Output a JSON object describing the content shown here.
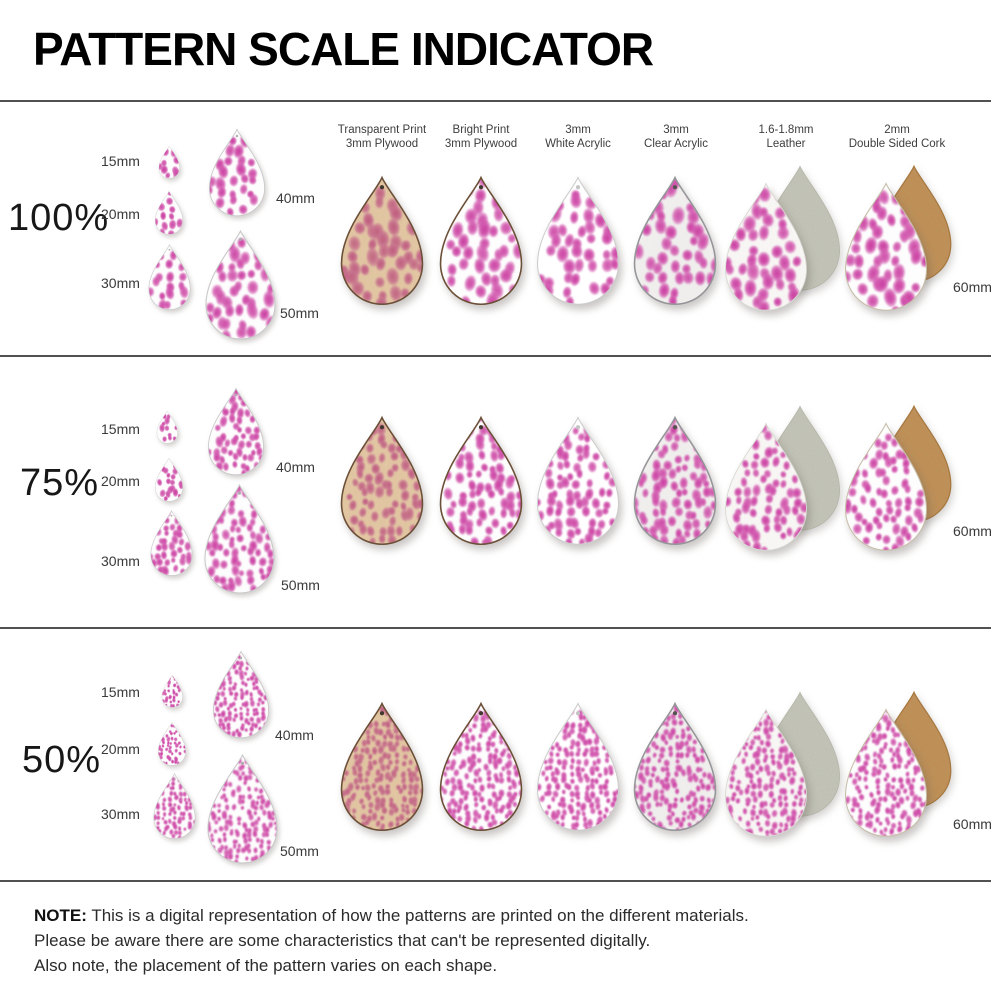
{
  "title": "PATTERN SCALE INDICATOR",
  "columns": [
    {
      "line1": "Transparent Print",
      "line2": "3mm Plywood",
      "slug": "plywood-transparent"
    },
    {
      "line1": "Bright Print",
      "line2": "3mm Plywood",
      "slug": "plywood-bright"
    },
    {
      "line1": "3mm",
      "line2": "White Acrylic",
      "slug": "white-acrylic"
    },
    {
      "line1": "3mm",
      "line2": "Clear Acrylic",
      "slug": "clear-acrylic"
    },
    {
      "line1": "1.6-1.8mm",
      "line2": "Leather",
      "slug": "leather"
    },
    {
      "line1": "2mm",
      "line2": "Double Sided Cork",
      "slug": "cork"
    }
  ],
  "rows": [
    {
      "percent": "100%",
      "sizes": [
        "15mm",
        "20mm",
        "30mm",
        "40mm",
        "50mm"
      ],
      "right_size_label": "60mm"
    },
    {
      "percent": "75%",
      "sizes": [
        "15mm",
        "20mm",
        "30mm",
        "40mm",
        "50mm"
      ],
      "right_size_label": "60mm"
    },
    {
      "percent": "50%",
      "sizes": [
        "15mm",
        "20mm",
        "30mm",
        "40mm",
        "50mm"
      ],
      "right_size_label": "60mm"
    }
  ],
  "note": {
    "prefix": "NOTE:",
    "lines": [
      "This is a digital representation of how the patterns are printed on the different materials.",
      "Please be aware there are some characteristics that can't be represented digitally.",
      "Also note, the placement of the pattern varies on each shape."
    ]
  },
  "colors": {
    "pink_core": "#c93d9f",
    "pink_mid": "#d257ae",
    "pink_halo": "#eec0e0",
    "rose_core": "#bd5a7b",
    "rose_mid": "#c7708c",
    "rose_halo": "#ddabb8",
    "plywood_base": "#e4c8a4",
    "plywood_edge": "#6b4f37",
    "acrylic_white": "#ffffff",
    "acrylic_clear": "#f1f0ee",
    "suede_gray": "#c8c9bc",
    "cork_tan": "#bf8c53",
    "print_white": "#fdfdfd"
  }
}
